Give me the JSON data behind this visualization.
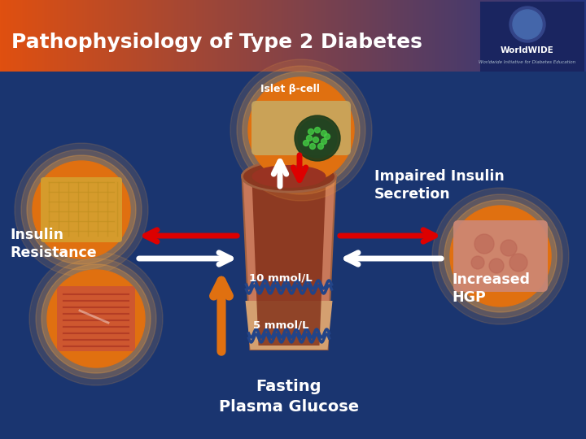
{
  "title": "Pathophysiology of Type 2 Diabetes",
  "title_color": "#FFFFFF",
  "title_fontsize": 18,
  "bg_color": "#1a3570",
  "header_color_left": "#e05010",
  "header_color_right": "#263580",
  "labels": {
    "islet_bcell": "Islet β-cell",
    "impaired_insulin": "Impaired Insulin\nSecretion",
    "insulin_resistance": "Insulin\nResistance",
    "increased_hgp": "Increased\nHGP",
    "fasting_glucose": "Fasting\nPlasma Glucose",
    "mmol_10": "10 mmol/L",
    "mmol_5": "5 mmol/L"
  },
  "label_color": "#FFFFFF",
  "circle_color": "#e07010",
  "circle_edge": "#f0a040",
  "arrow_red": "#dd0000",
  "arrow_white": "#FFFFFF",
  "arrow_orange": "#e07010",
  "worldWIDE_text": "WorldWIDE",
  "worldWIDE_sub": "Worldwide Initiative for Diabetes Education",
  "tube_color": "#c8785a",
  "tube_top_color": "#8B3820",
  "tube_inner_color": "#7a2510",
  "fat_color": "#d4a030",
  "muscle_color": "#cc4433",
  "liver_color": "#cc8877",
  "wave_color": "#224488"
}
